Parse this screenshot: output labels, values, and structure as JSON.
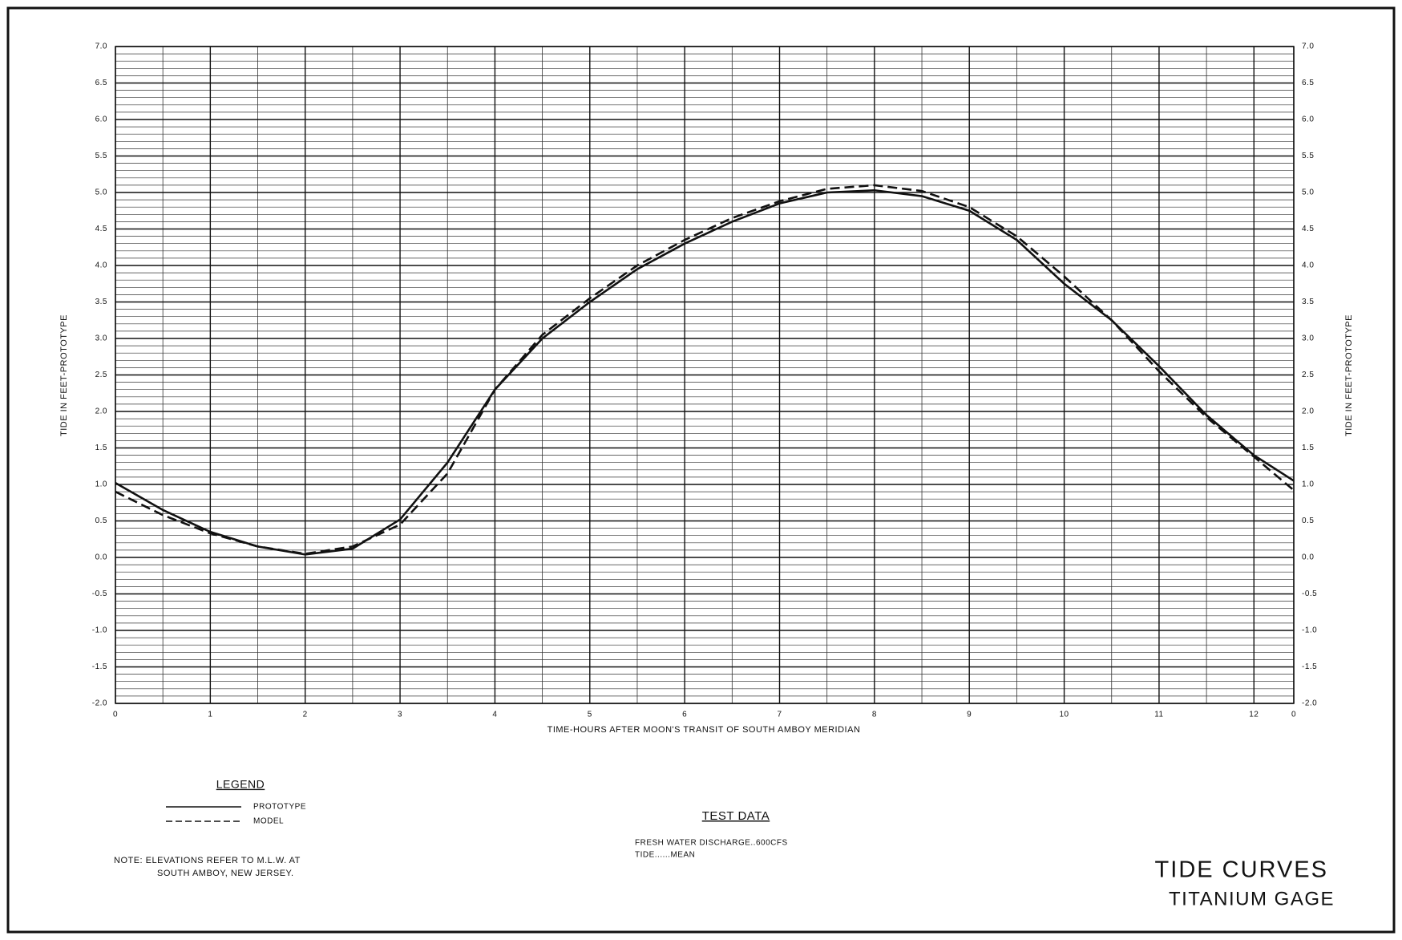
{
  "chart_data": {
    "type": "line",
    "title": "TIDE CURVES",
    "subtitle": "TITANIUM GAGE",
    "x_label": "TIME-HOURS AFTER MOON'S TRANSIT OF SOUTH AMBOY MERIDIAN",
    "y_label": "TIDE IN FEET-PROTOTYPE",
    "y2_label": "TIDE IN FEET-PROTOTYPE",
    "x": [
      0,
      0.5,
      1,
      1.5,
      2,
      2.5,
      3,
      3.5,
      4,
      4.5,
      5,
      5.5,
      6,
      6.5,
      7,
      7.5,
      8,
      8.5,
      9,
      9.5,
      10,
      10.5,
      11,
      11.5,
      12,
      12.42
    ],
    "series": [
      {
        "name": "PROTOTYPE",
        "color": "#111111",
        "dash": false,
        "values": [
          1.02,
          0.65,
          0.35,
          0.15,
          0.04,
          0.12,
          0.52,
          1.3,
          2.3,
          3.0,
          3.5,
          3.95,
          4.3,
          4.6,
          4.85,
          5.0,
          5.03,
          4.95,
          4.75,
          4.35,
          3.75,
          3.25,
          2.62,
          1.95,
          1.4,
          1.05
        ]
      },
      {
        "name": "MODEL",
        "color": "#111111",
        "dash": true,
        "values": [
          0.9,
          0.58,
          0.33,
          0.15,
          0.05,
          0.15,
          0.45,
          1.15,
          2.3,
          3.05,
          3.55,
          4.0,
          4.35,
          4.65,
          4.88,
          5.05,
          5.1,
          5.02,
          4.8,
          4.4,
          3.85,
          3.25,
          2.55,
          1.92,
          1.38,
          0.92
        ]
      }
    ],
    "xlim": [
      0,
      12.42
    ],
    "xticks": [
      0,
      1,
      2,
      3,
      4,
      5,
      6,
      7,
      8,
      9,
      10,
      11,
      12,
      {
        "value": 12.42,
        "label": "0"
      }
    ],
    "ylim": [
      -2,
      7
    ],
    "yticks": [
      {
        "value": -2,
        "label": "-2.0"
      },
      {
        "value": -1.5,
        "label": "-1.5"
      },
      {
        "value": -1,
        "label": "-1.0"
      },
      {
        "value": -0.5,
        "label": "-0.5"
      },
      {
        "value": 0,
        "label": "0.0"
      },
      {
        "value": 0.5,
        "label": "0.5"
      },
      {
        "value": 1,
        "label": "1.0"
      },
      {
        "value": 1.5,
        "label": "1.5"
      },
      {
        "value": 2,
        "label": "2.0"
      },
      {
        "value": 2.5,
        "label": "2.5"
      },
      {
        "value": 3,
        "label": "3.0"
      },
      {
        "value": 3.5,
        "label": "3.5"
      },
      {
        "value": 4,
        "label": "4.0"
      },
      {
        "value": 4.5,
        "label": "4.5"
      },
      {
        "value": 5,
        "label": "5.0"
      },
      {
        "value": 5.5,
        "label": "5.5"
      },
      {
        "value": 6,
        "label": "6.0"
      },
      {
        "value": 6.5,
        "label": "6.5"
      },
      {
        "value": 7,
        "label": "7.0"
      }
    ],
    "grid": true,
    "legend_title": "LEGEND",
    "note": [
      "NOTE: ELEVATIONS REFER TO M.L.W. AT",
      "SOUTH AMBOY, NEW JERSEY."
    ],
    "test_data": {
      "title": "TEST DATA",
      "lines": [
        "FRESH WATER DISCHARGE..600CFS",
        "TIDE......MEAN"
      ]
    }
  }
}
